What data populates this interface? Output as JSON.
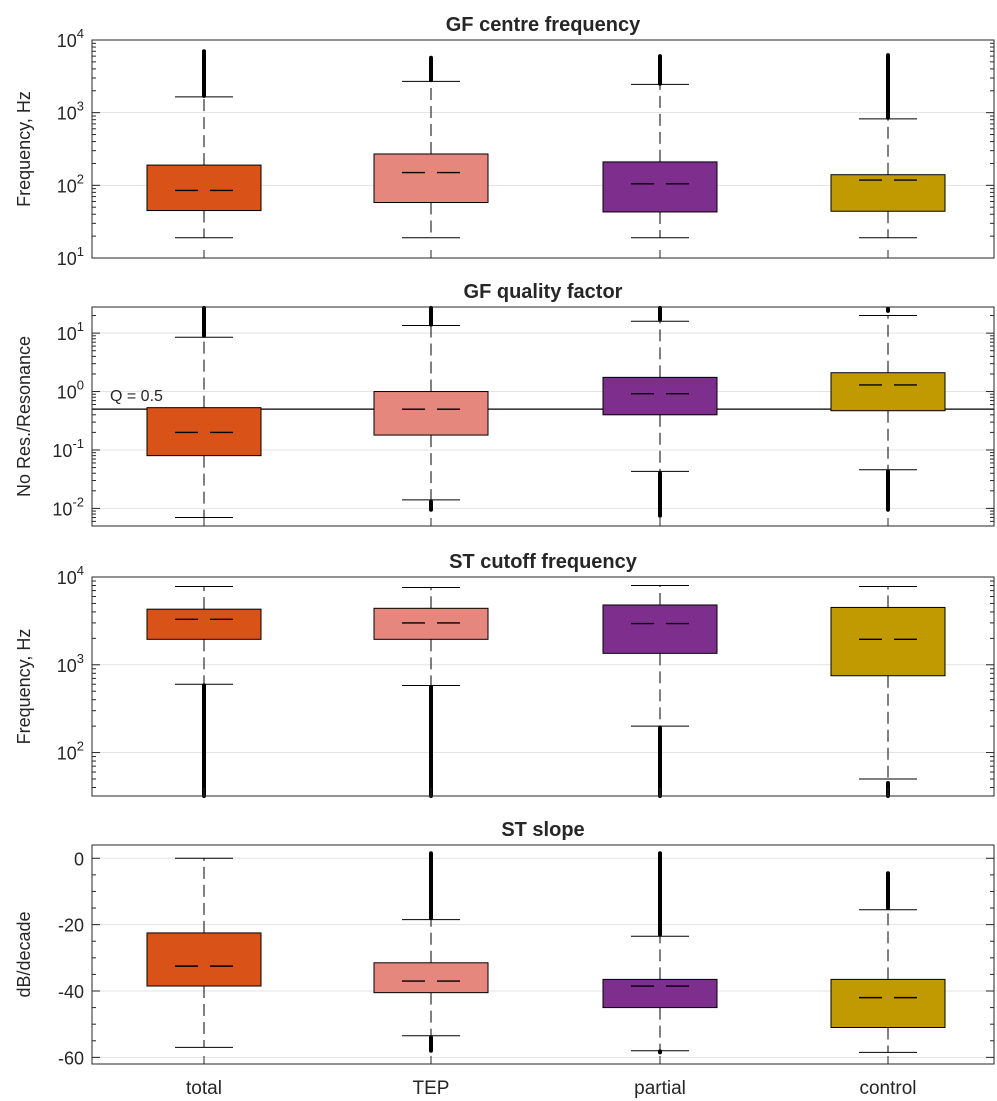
{
  "colors": {
    "total": "#D95319",
    "TEP": "#E6877E",
    "partial": "#7E2F8E",
    "control": "#C09A00"
  },
  "categories": [
    "total",
    "TEP",
    "partial",
    "control"
  ],
  "chart_data": [
    {
      "type": "box",
      "title": "GF centre frequency",
      "ylabel": "Frequency, Hz",
      "yscale": "log",
      "ylim": [
        10,
        10000
      ],
      "grid": true,
      "yticks": [
        {
          "value": 10,
          "base": "10",
          "exp": "1"
        },
        {
          "value": 100,
          "base": "10",
          "exp": "2"
        },
        {
          "value": 1000,
          "base": "10",
          "exp": "3"
        },
        {
          "value": 10000,
          "base": "10",
          "exp": "4"
        }
      ],
      "boxes": [
        {
          "category": "total",
          "q1": 45,
          "median": 85,
          "q3": 190,
          "whisker_low": 19,
          "whisker_high": 1650,
          "outlier_range": [
            1700,
            7000
          ]
        },
        {
          "category": "TEP",
          "q1": 58,
          "median": 150,
          "q3": 270,
          "whisker_low": 19,
          "whisker_high": 2700,
          "outlier_range": [
            2800,
            5700
          ]
        },
        {
          "category": "partial",
          "q1": 43,
          "median": 105,
          "q3": 210,
          "whisker_low": 19,
          "whisker_high": 2450,
          "outlier_range": [
            2500,
            6000
          ]
        },
        {
          "category": "control",
          "q1": 44,
          "median": 118,
          "q3": 140,
          "whisker_low": 19,
          "whisker_high": 820,
          "outlier_range": [
            850,
            6200
          ]
        }
      ]
    },
    {
      "type": "box",
      "title": "GF quality factor",
      "ylabel": "No Res./Resonance",
      "yscale": "log",
      "ylim": [
        0.005,
        28
      ],
      "grid": true,
      "yticks": [
        {
          "value": 0.01,
          "base": "10",
          "exp": "-2"
        },
        {
          "value": 0.1,
          "base": "10",
          "exp": "-1"
        },
        {
          "value": 1,
          "base": "10",
          "exp": "0"
        },
        {
          "value": 10,
          "base": "10",
          "exp": "1"
        }
      ],
      "reference_line": {
        "value": 0.5,
        "label": "Q = 0.5"
      },
      "boxes": [
        {
          "category": "total",
          "q1": 0.08,
          "median": 0.2,
          "q3": 0.53,
          "whisker_low": 0.007,
          "whisker_high": 8.5,
          "outlier_range": [
            9,
            27
          ]
        },
        {
          "category": "TEP",
          "q1": 0.18,
          "median": 0.5,
          "q3": 1.0,
          "whisker_low": 0.014,
          "whisker_high": 13.5,
          "outlier_range": [
            14,
            27
          ],
          "low_outlier_range": [
            0.0095,
            0.013
          ]
        },
        {
          "category": "partial",
          "q1": 0.4,
          "median": 0.92,
          "q3": 1.75,
          "whisker_low": 0.043,
          "whisker_high": 16,
          "outlier_range": [
            17,
            27
          ],
          "low_outlier_range": [
            0.0075,
            0.04
          ]
        },
        {
          "category": "control",
          "q1": 0.47,
          "median": 1.3,
          "q3": 2.1,
          "whisker_low": 0.046,
          "whisker_high": 20,
          "outlier_range": [
            24,
            26
          ],
          "low_outlier_range": [
            0.0095,
            0.043
          ]
        }
      ]
    },
    {
      "type": "box",
      "title": "ST cutoff frequency",
      "ylabel": "Frequency, Hz",
      "yscale": "log",
      "ylim": [
        32,
        10000
      ],
      "grid": true,
      "yticks": [
        {
          "value": 100,
          "base": "10",
          "exp": "2"
        },
        {
          "value": 1000,
          "base": "10",
          "exp": "3"
        },
        {
          "value": 10000,
          "base": "10",
          "exp": "4"
        }
      ],
      "boxes": [
        {
          "category": "total",
          "q1": 1950,
          "median": 3300,
          "q3": 4300,
          "whisker_low": 600,
          "whisker_high": 7800,
          "low_outlier_range": [
            32,
            580
          ]
        },
        {
          "category": "TEP",
          "q1": 1950,
          "median": 3000,
          "q3": 4400,
          "whisker_low": 580,
          "whisker_high": 7600,
          "low_outlier_range": [
            32,
            560
          ]
        },
        {
          "category": "partial",
          "q1": 1350,
          "median": 2950,
          "q3": 4800,
          "whisker_low": 200,
          "whisker_high": 8000,
          "low_outlier_range": [
            32,
            190
          ]
        },
        {
          "category": "control",
          "q1": 750,
          "median": 1950,
          "q3": 4500,
          "whisker_low": 50,
          "whisker_high": 7800,
          "low_outlier_range": [
            32,
            45
          ]
        }
      ]
    },
    {
      "type": "box",
      "title": "ST slope",
      "ylabel": "dB/decade",
      "yscale": "linear",
      "ylim": [
        -62,
        4
      ],
      "grid": true,
      "yticks": [
        {
          "value": -60,
          "label": "-60"
        },
        {
          "value": -40,
          "label": "-40"
        },
        {
          "value": -20,
          "label": "-20"
        },
        {
          "value": 0,
          "label": "0"
        }
      ],
      "boxes": [
        {
          "category": "total",
          "q1": -38.5,
          "median": -32.5,
          "q3": -22.5,
          "whisker_low": -57,
          "whisker_high": 0
        },
        {
          "category": "TEP",
          "q1": -40.5,
          "median": -37,
          "q3": -31.5,
          "whisker_low": -53.5,
          "whisker_high": -18.5,
          "outlier_range": [
            -18,
            1.5
          ],
          "low_outlier_range": [
            -58,
            -54
          ]
        },
        {
          "category": "partial",
          "q1": -45,
          "median": -38.5,
          "q3": -36.5,
          "whisker_low": -58,
          "whisker_high": -23.5,
          "outlier_range": [
            -23,
            1.5
          ],
          "low_outlier_range": [
            -58.5,
            -58.2
          ]
        },
        {
          "category": "control",
          "q1": -51,
          "median": -42,
          "q3": -36.5,
          "whisker_low": -58.5,
          "whisker_high": -15.5,
          "outlier_range": [
            -15,
            -4.5
          ]
        }
      ]
    }
  ]
}
